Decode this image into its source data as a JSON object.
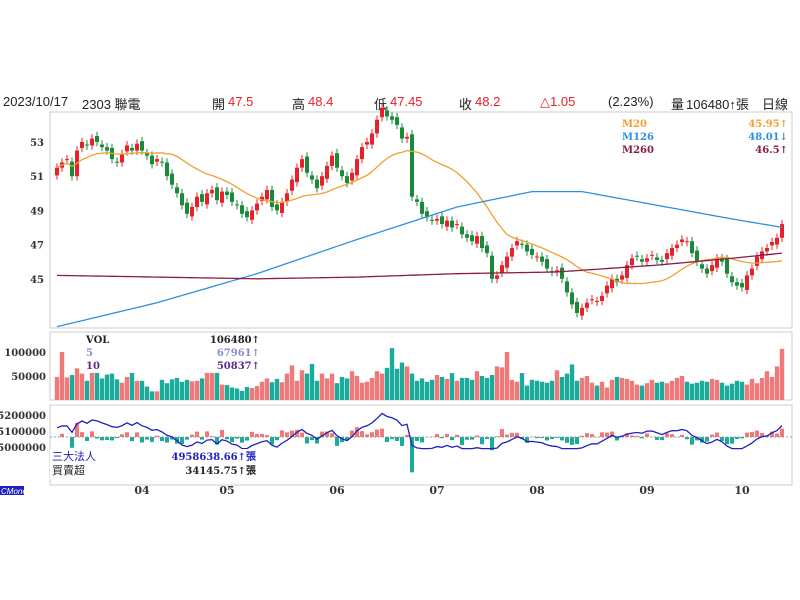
{
  "header": {
    "date": "2023/10/17",
    "stock": "2303 聯電",
    "open_label": "開",
    "open": "47.5",
    "high_label": "高",
    "high": "48.4",
    "low_label": "低",
    "low": "47.45",
    "close_label": "收",
    "close": "48.2",
    "change": "△1.05",
    "pct": "(2.23%)",
    "vol_label": "量",
    "vol": "106480↑張",
    "period": "日線"
  },
  "colors": {
    "up": "#f07878",
    "up_candle": "#e8202a",
    "down": "#1aab9b",
    "down_candle": "#1a8a3a",
    "m20": "#f0a030",
    "m126": "#3090e0",
    "m260": "#8a1a4a",
    "inst": "#2020c0"
  },
  "legend": {
    "m20_label": "M20",
    "m20_value": "45.95↑",
    "m126_label": "M126",
    "m126_value": "48.01↓",
    "m260_label": "M260",
    "m260_value": "46.5↑"
  },
  "vol_legend": {
    "vol_label": "VOL",
    "vol_value": "106480↑",
    "ma5_label": "5",
    "ma5_value": "67961↑",
    "ma10_label": "10",
    "ma10_value": "50837↑"
  },
  "inst_legend": {
    "label": "三大法人",
    "value": "4958638.66↑張",
    "net_label": "買賣超",
    "net_value": "34145.75↑張"
  },
  "brand": "CMoney",
  "chart_data": {
    "type": "candlestick",
    "price_ticks": [
      "53",
      "51",
      "49",
      "47",
      "45"
    ],
    "vol_ticks": [
      "100000",
      "50000"
    ],
    "inst_ticks": [
      "5200000",
      "5100000",
      "5000000"
    ],
    "months": [
      {
        "label": "04",
        "index": 17
      },
      {
        "label": "05",
        "index": 34
      },
      {
        "label": "06",
        "index": 56
      },
      {
        "label": "07",
        "index": 76
      },
      {
        "label": "08",
        "index": 96
      },
      {
        "label": "09",
        "index": 118
      },
      {
        "label": "10",
        "index": 137
      }
    ],
    "closes": [
      51.5,
      51.8,
      52,
      51,
      52.5,
      53,
      52.8,
      53.2,
      53,
      52.7,
      52.5,
      52,
      51.8,
      52.3,
      52.8,
      52.5,
      52.9,
      52.5,
      52.2,
      51.7,
      52,
      51.8,
      51,
      50.5,
      50,
      49.3,
      48.8,
      49.2,
      49.8,
      49.5,
      50,
      50.2,
      49.6,
      50.1,
      49.9,
      49.5,
      49.3,
      48.8,
      48.6,
      49,
      49.4,
      49.8,
      50.2,
      49.2,
      49,
      49.5,
      50,
      50.8,
      51.5,
      52,
      51.2,
      50.8,
      50.3,
      51,
      51.6,
      52.2,
      51.5,
      51,
      50.6,
      51.2,
      52,
      52.7,
      53,
      53.5,
      54.3,
      55,
      54.5,
      54.3,
      54,
      53.2,
      53.3,
      49.8,
      49.5,
      48.8,
      48.6,
      48.4,
      48.5,
      48.2,
      48.4,
      48,
      48.2,
      47.6,
      47.4,
      47.2,
      47.5,
      46.8,
      46.5,
      45,
      45.2,
      45.8,
      46.3,
      46.8,
      47.2,
      47,
      46.6,
      46.4,
      46.3,
      46,
      45.6,
      45.4,
      45.5,
      45,
      44.2,
      43.5,
      43,
      43.3,
      43.6,
      43.8,
      43.7,
      44,
      44.6,
      45,
      44.8,
      45.2,
      45.8,
      46.2,
      46.3,
      46,
      46.2,
      46.4,
      46.1,
      46,
      46.5,
      46.8,
      47,
      47.3,
      47.2,
      46.5,
      46,
      45.6,
      45.3,
      45.8,
      46.2,
      46,
      45.3,
      44.8,
      44.6,
      44.5,
      45.2,
      45.6,
      46.3,
      46.6,
      46.8,
      47.15,
      47.4,
      48.2
    ],
    "m126": [
      [
        0,
        42.2
      ],
      [
        20,
        43.6
      ],
      [
        40,
        45.3
      ],
      [
        60,
        47.3
      ],
      [
        80,
        49.2
      ],
      [
        95,
        50.1
      ],
      [
        105,
        50.1
      ],
      [
        120,
        49.3
      ],
      [
        135,
        48.5
      ],
      [
        145,
        48.01
      ]
    ],
    "m260": [
      [
        0,
        45.2
      ],
      [
        20,
        45.1
      ],
      [
        40,
        45
      ],
      [
        60,
        45.1
      ],
      [
        80,
        45.3
      ],
      [
        100,
        45.4
      ],
      [
        120,
        45.8
      ],
      [
        135,
        46.2
      ],
      [
        145,
        46.5
      ]
    ],
    "volumes": [
      48,
      100,
      47,
      52,
      66,
      55,
      40,
      60,
      60,
      45,
      53,
      55,
      43,
      36,
      48,
      60,
      40,
      40,
      28,
      18,
      18,
      42,
      35,
      43,
      46,
      38,
      42,
      39,
      40,
      45,
      59,
      60,
      60,
      32,
      31,
      26,
      24,
      19,
      27,
      25,
      29,
      38,
      45,
      37,
      44,
      37,
      55,
      72,
      40,
      62,
      55,
      75,
      40,
      55,
      45,
      55,
      35,
      48,
      45,
      60,
      50,
      36,
      38,
      46,
      60,
      55,
      67,
      108,
      65,
      78,
      70,
      55,
      40,
      45,
      38,
      42,
      52,
      48,
      44,
      56,
      40,
      46,
      46,
      42,
      60,
      50,
      46,
      52,
      70,
      68,
      100,
      42,
      38,
      56,
      30,
      42,
      40,
      38,
      36,
      40,
      62,
      48,
      55,
      74,
      40,
      46,
      50,
      36,
      30,
      38,
      26,
      42,
      48,
      46,
      44,
      40,
      32,
      30,
      35,
      42,
      36,
      38,
      35,
      40,
      46,
      50,
      38,
      34,
      36,
      40,
      38,
      44,
      42,
      36,
      30,
      34,
      40,
      38,
      32,
      44,
      35,
      46,
      60,
      48,
      70,
      106.48
    ]
  }
}
